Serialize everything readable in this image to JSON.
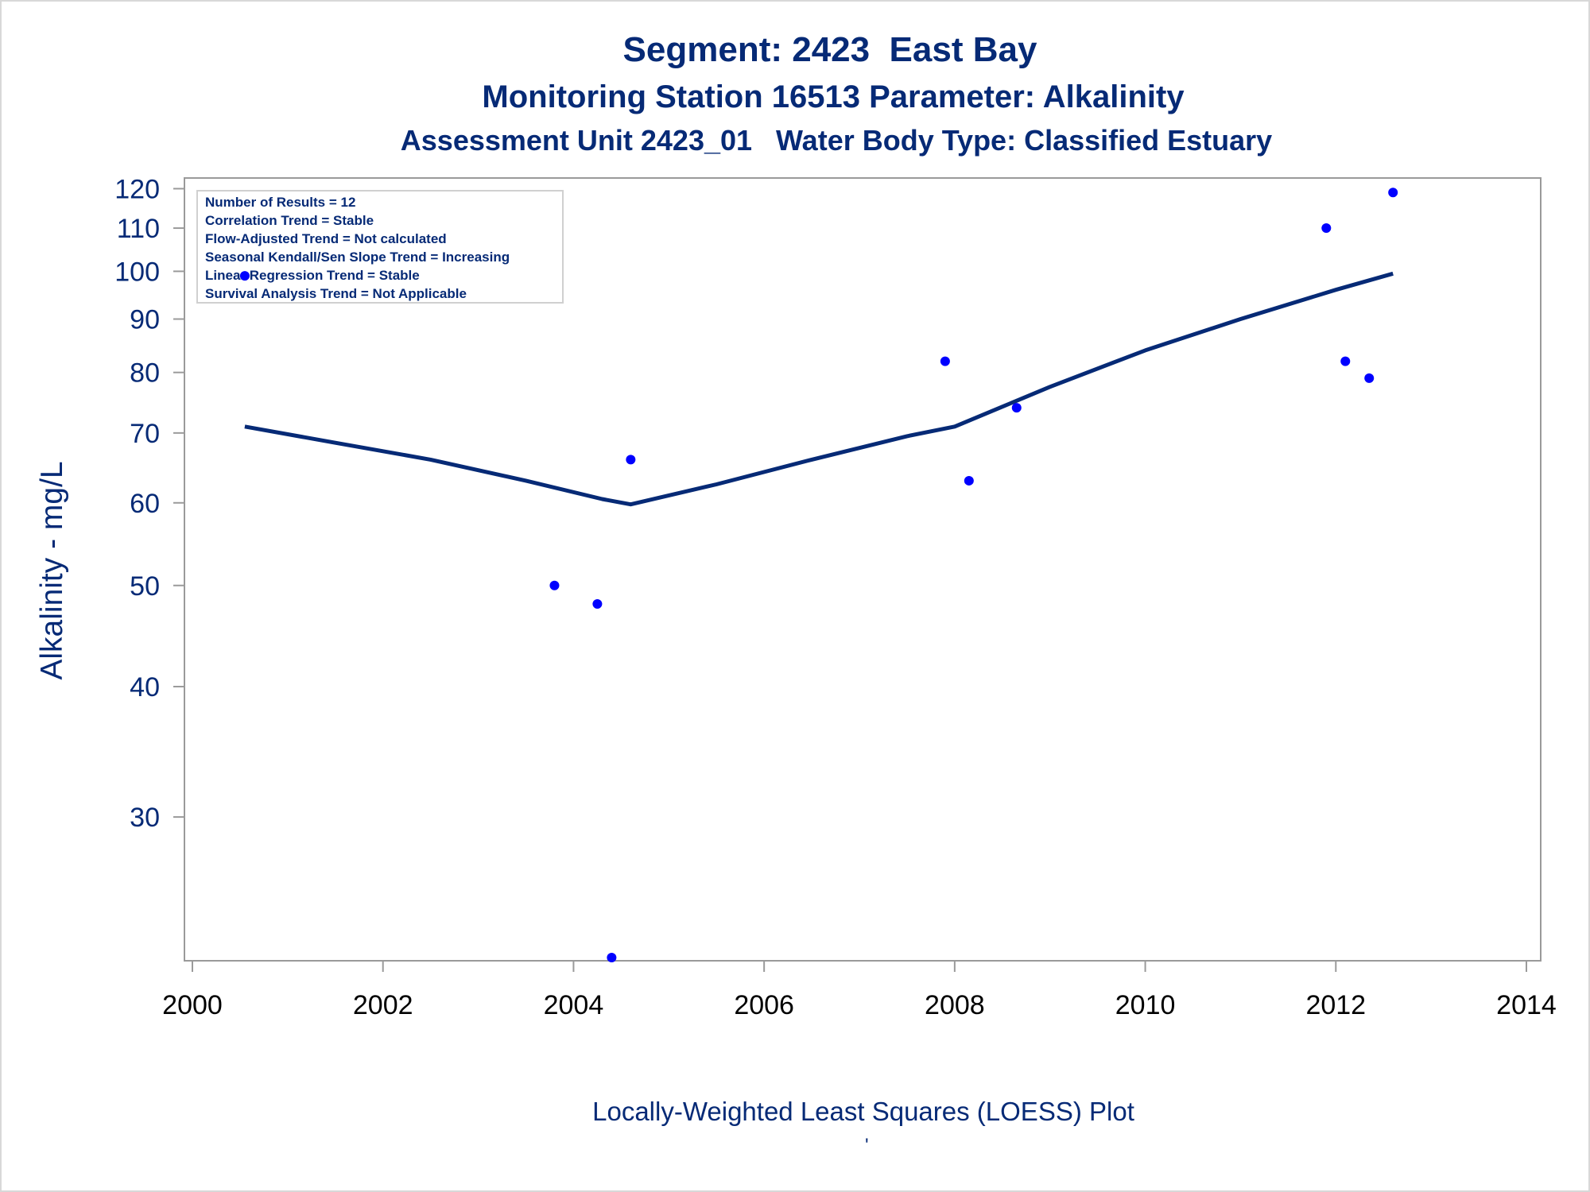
{
  "chart_data": {
    "type": "scatter",
    "title": "Segment: 2423  East Bay",
    "subtitle": "Monitoring Station 16513 Parameter: Alkalinity",
    "subtitle2": "Assessment Unit 2423_01   Water Body Type: Classified Estuary",
    "xlabel": "",
    "ylabel": "Alkalinity - mg/L",
    "footnote": "Locally-Weighted Least Squares (LOESS) Plot",
    "footnote_mark": "'",
    "y_scale": "log",
    "xlim": [
      2000,
      2014
    ],
    "ylim": [
      22,
      122
    ],
    "x_ticks": [
      2000,
      2002,
      2004,
      2006,
      2008,
      2010,
      2012,
      2014
    ],
    "y_ticks": [
      30,
      40,
      50,
      60,
      70,
      80,
      90,
      100,
      110,
      120
    ],
    "grid": false,
    "annotation_box": [
      "Number of Results = 12",
      "Correlation Trend = Stable",
      "Flow-Adjusted Trend = Not calculated",
      "Seasonal Kendall/Sen Slope Trend = Increasing",
      "Linear Regression Trend = Stable",
      "Survival Analysis Trend = Not Applicable"
    ],
    "annotation_box_position": "top-left",
    "points": {
      "color": "#0000ff",
      "x": [
        2000.55,
        2003.8,
        2004.25,
        2004.4,
        2004.6,
        2007.9,
        2008.15,
        2008.65,
        2011.9,
        2012.1,
        2012.35,
        2012.6
      ],
      "y": [
        99,
        50,
        48,
        22,
        66,
        82,
        63,
        74,
        110,
        82,
        79,
        119
      ]
    },
    "loess": {
      "color": "#062a76",
      "x": [
        2000.55,
        2001.5,
        2002.5,
        2003.5,
        2004.3,
        2004.6,
        2005.5,
        2006.5,
        2007.5,
        2008.0,
        2009.0,
        2010.0,
        2011.0,
        2012.0,
        2012.6
      ],
      "y": [
        71,
        68.5,
        66,
        63,
        60.5,
        59.8,
        62.5,
        66,
        69.5,
        71,
        77.5,
        84,
        90,
        96,
        99.5
      ]
    }
  }
}
